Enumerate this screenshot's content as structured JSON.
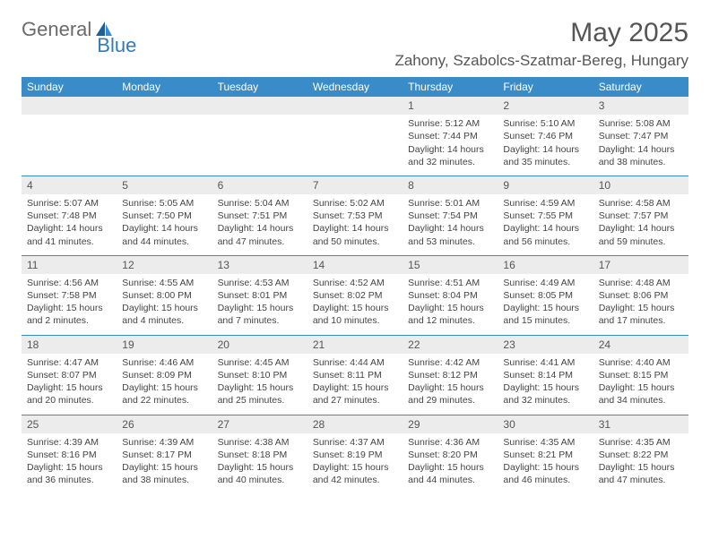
{
  "brand": {
    "part1": "General",
    "part2": "Blue"
  },
  "title": "May 2025",
  "location": "Zahony, Szabolcs-Szatmar-Bereg, Hungary",
  "colors": {
    "header_band": "#3a8cc9",
    "daynum_bg": "#ececec",
    "text": "#444444",
    "title_text": "#555555",
    "brand_gray": "#6b6b6b",
    "brand_blue": "#2f7bbf",
    "rule": "#3a8cc9"
  },
  "weekdays": [
    "Sunday",
    "Monday",
    "Tuesday",
    "Wednesday",
    "Thursday",
    "Friday",
    "Saturday"
  ],
  "weeks": [
    [
      null,
      null,
      null,
      null,
      {
        "n": "1",
        "sr": "Sunrise: 5:12 AM",
        "ss": "Sunset: 7:44 PM",
        "dl": "Daylight: 14 hours and 32 minutes."
      },
      {
        "n": "2",
        "sr": "Sunrise: 5:10 AM",
        "ss": "Sunset: 7:46 PM",
        "dl": "Daylight: 14 hours and 35 minutes."
      },
      {
        "n": "3",
        "sr": "Sunrise: 5:08 AM",
        "ss": "Sunset: 7:47 PM",
        "dl": "Daylight: 14 hours and 38 minutes."
      }
    ],
    [
      {
        "n": "4",
        "sr": "Sunrise: 5:07 AM",
        "ss": "Sunset: 7:48 PM",
        "dl": "Daylight: 14 hours and 41 minutes."
      },
      {
        "n": "5",
        "sr": "Sunrise: 5:05 AM",
        "ss": "Sunset: 7:50 PM",
        "dl": "Daylight: 14 hours and 44 minutes."
      },
      {
        "n": "6",
        "sr": "Sunrise: 5:04 AM",
        "ss": "Sunset: 7:51 PM",
        "dl": "Daylight: 14 hours and 47 minutes."
      },
      {
        "n": "7",
        "sr": "Sunrise: 5:02 AM",
        "ss": "Sunset: 7:53 PM",
        "dl": "Daylight: 14 hours and 50 minutes."
      },
      {
        "n": "8",
        "sr": "Sunrise: 5:01 AM",
        "ss": "Sunset: 7:54 PM",
        "dl": "Daylight: 14 hours and 53 minutes."
      },
      {
        "n": "9",
        "sr": "Sunrise: 4:59 AM",
        "ss": "Sunset: 7:55 PM",
        "dl": "Daylight: 14 hours and 56 minutes."
      },
      {
        "n": "10",
        "sr": "Sunrise: 4:58 AM",
        "ss": "Sunset: 7:57 PM",
        "dl": "Daylight: 14 hours and 59 minutes."
      }
    ],
    [
      {
        "n": "11",
        "sr": "Sunrise: 4:56 AM",
        "ss": "Sunset: 7:58 PM",
        "dl": "Daylight: 15 hours and 2 minutes."
      },
      {
        "n": "12",
        "sr": "Sunrise: 4:55 AM",
        "ss": "Sunset: 8:00 PM",
        "dl": "Daylight: 15 hours and 4 minutes."
      },
      {
        "n": "13",
        "sr": "Sunrise: 4:53 AM",
        "ss": "Sunset: 8:01 PM",
        "dl": "Daylight: 15 hours and 7 minutes."
      },
      {
        "n": "14",
        "sr": "Sunrise: 4:52 AM",
        "ss": "Sunset: 8:02 PM",
        "dl": "Daylight: 15 hours and 10 minutes."
      },
      {
        "n": "15",
        "sr": "Sunrise: 4:51 AM",
        "ss": "Sunset: 8:04 PM",
        "dl": "Daylight: 15 hours and 12 minutes."
      },
      {
        "n": "16",
        "sr": "Sunrise: 4:49 AM",
        "ss": "Sunset: 8:05 PM",
        "dl": "Daylight: 15 hours and 15 minutes."
      },
      {
        "n": "17",
        "sr": "Sunrise: 4:48 AM",
        "ss": "Sunset: 8:06 PM",
        "dl": "Daylight: 15 hours and 17 minutes."
      }
    ],
    [
      {
        "n": "18",
        "sr": "Sunrise: 4:47 AM",
        "ss": "Sunset: 8:07 PM",
        "dl": "Daylight: 15 hours and 20 minutes."
      },
      {
        "n": "19",
        "sr": "Sunrise: 4:46 AM",
        "ss": "Sunset: 8:09 PM",
        "dl": "Daylight: 15 hours and 22 minutes."
      },
      {
        "n": "20",
        "sr": "Sunrise: 4:45 AM",
        "ss": "Sunset: 8:10 PM",
        "dl": "Daylight: 15 hours and 25 minutes."
      },
      {
        "n": "21",
        "sr": "Sunrise: 4:44 AM",
        "ss": "Sunset: 8:11 PM",
        "dl": "Daylight: 15 hours and 27 minutes."
      },
      {
        "n": "22",
        "sr": "Sunrise: 4:42 AM",
        "ss": "Sunset: 8:12 PM",
        "dl": "Daylight: 15 hours and 29 minutes."
      },
      {
        "n": "23",
        "sr": "Sunrise: 4:41 AM",
        "ss": "Sunset: 8:14 PM",
        "dl": "Daylight: 15 hours and 32 minutes."
      },
      {
        "n": "24",
        "sr": "Sunrise: 4:40 AM",
        "ss": "Sunset: 8:15 PM",
        "dl": "Daylight: 15 hours and 34 minutes."
      }
    ],
    [
      {
        "n": "25",
        "sr": "Sunrise: 4:39 AM",
        "ss": "Sunset: 8:16 PM",
        "dl": "Daylight: 15 hours and 36 minutes."
      },
      {
        "n": "26",
        "sr": "Sunrise: 4:39 AM",
        "ss": "Sunset: 8:17 PM",
        "dl": "Daylight: 15 hours and 38 minutes."
      },
      {
        "n": "27",
        "sr": "Sunrise: 4:38 AM",
        "ss": "Sunset: 8:18 PM",
        "dl": "Daylight: 15 hours and 40 minutes."
      },
      {
        "n": "28",
        "sr": "Sunrise: 4:37 AM",
        "ss": "Sunset: 8:19 PM",
        "dl": "Daylight: 15 hours and 42 minutes."
      },
      {
        "n": "29",
        "sr": "Sunrise: 4:36 AM",
        "ss": "Sunset: 8:20 PM",
        "dl": "Daylight: 15 hours and 44 minutes."
      },
      {
        "n": "30",
        "sr": "Sunrise: 4:35 AM",
        "ss": "Sunset: 8:21 PM",
        "dl": "Daylight: 15 hours and 46 minutes."
      },
      {
        "n": "31",
        "sr": "Sunrise: 4:35 AM",
        "ss": "Sunset: 8:22 PM",
        "dl": "Daylight: 15 hours and 47 minutes."
      }
    ]
  ]
}
